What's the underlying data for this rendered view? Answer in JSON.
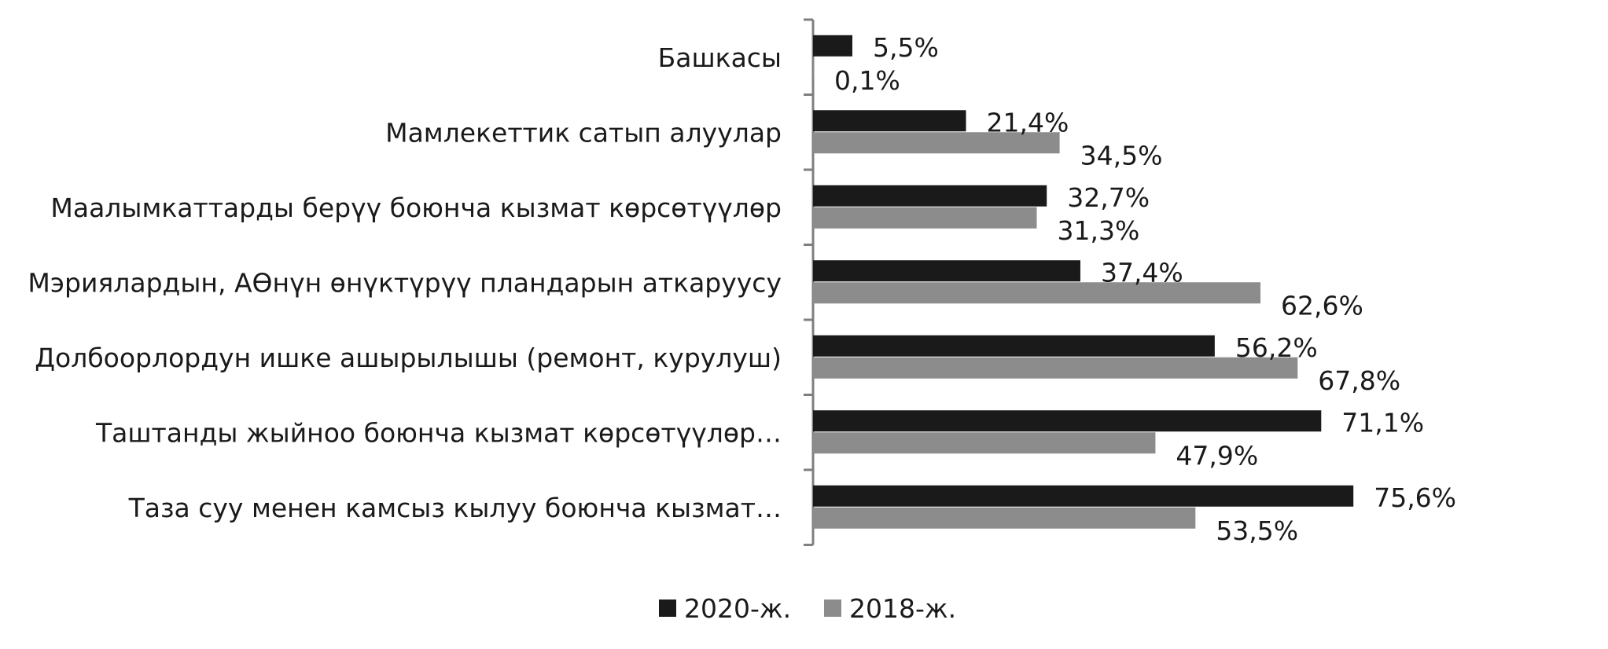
{
  "chart_data": {
    "type": "bar",
    "orientation": "horizontal",
    "categories": [
      "Башкасы",
      "Мамлекеттик сатып алуулар",
      "Маалымкаттарды берүү боюнча кызмат көрсөтүүлөр",
      "Мэриялардын, АӨнүн өнүктүрүү пландарын аткаруусу",
      "Долбоорлордун ишке ашырылышы (ремонт, курулуш)",
      "Таштанды жыйноо боюнча кызмат көрсөтүүлөр…",
      "Таза суу менен камсыз кылуу боюнча кызмат…"
    ],
    "series": [
      {
        "name": "2020-ж.",
        "color": "#1a1a1a",
        "values": [
          5.5,
          21.4,
          32.7,
          37.4,
          56.2,
          71.1,
          75.6
        ],
        "labels": [
          "5,5%",
          "21,4%",
          "32,7%",
          "37,4%",
          "56,2%",
          "71,1%",
          "75,6%"
        ]
      },
      {
        "name": "2018-ж.",
        "color": "#8c8c8c",
        "values": [
          0.1,
          34.5,
          31.3,
          62.6,
          67.8,
          47.9,
          53.5
        ],
        "labels": [
          "0,1%",
          "34,5%",
          "31,3%",
          "62,6%",
          "67,8%",
          "47,9%",
          "53,5%"
        ]
      }
    ],
    "xlim": [
      0,
      80
    ],
    "grid": false,
    "legend_position": "bottom-center"
  }
}
